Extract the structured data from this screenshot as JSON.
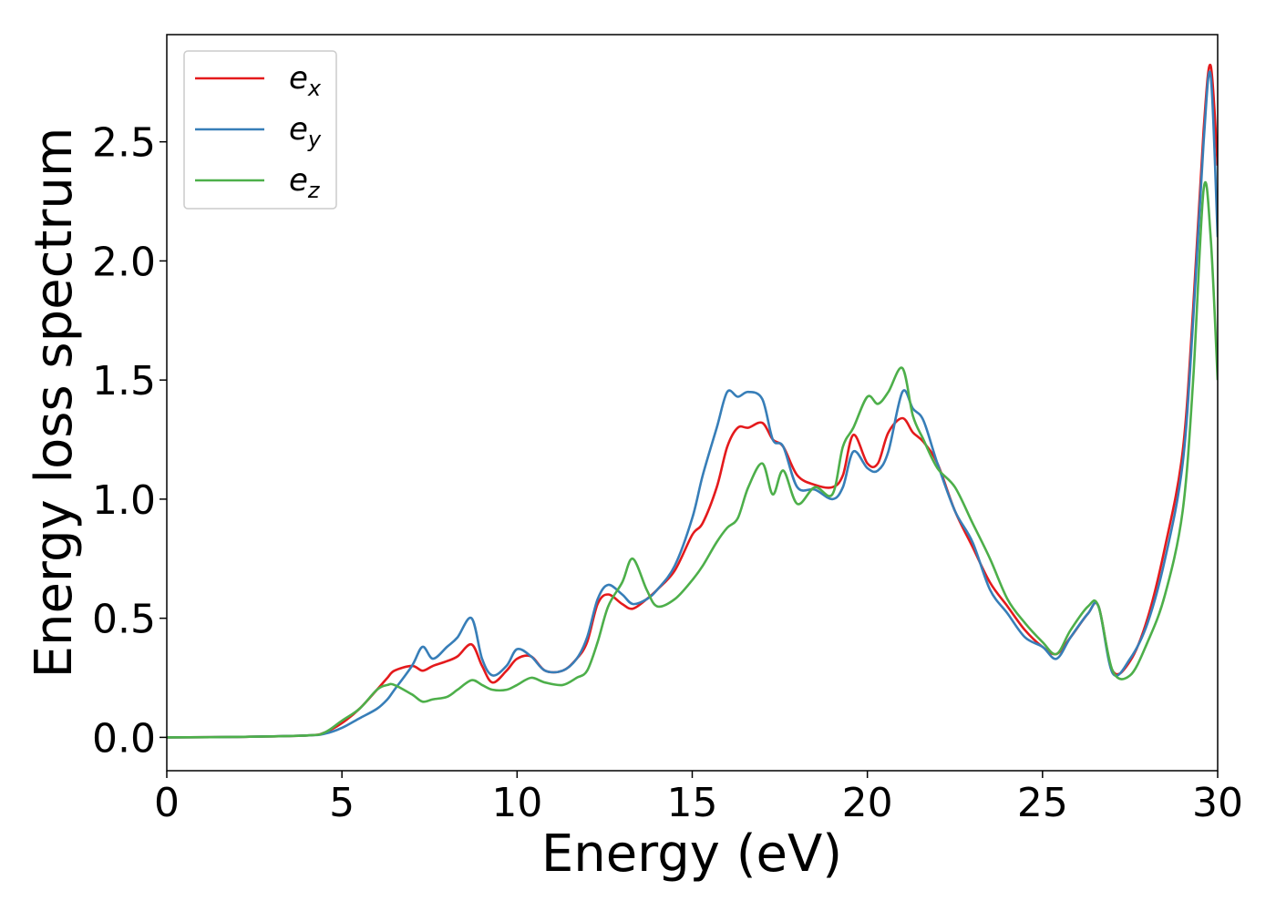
{
  "chart_data": {
    "type": "line",
    "title": "",
    "xlabel": "Energy (eV)",
    "ylabel": "Energy loss spectrum",
    "xlim": [
      0,
      30
    ],
    "ylim": [
      -0.14,
      2.95
    ],
    "xticks": [
      0,
      5,
      10,
      15,
      20,
      25,
      30
    ],
    "xtick_labels": [
      "0",
      "5",
      "10",
      "15",
      "20",
      "25",
      "30"
    ],
    "yticks": [
      0.0,
      0.5,
      1.0,
      1.5,
      2.0,
      2.5
    ],
    "ytick_labels": [
      "0.0",
      "0.5",
      "1.0",
      "1.5",
      "2.0",
      "2.5"
    ],
    "grid": false,
    "legend_position": "top-left",
    "series": [
      {
        "name": "e_x",
        "legend_base": "e",
        "legend_sub": "x",
        "color": "#e41a1c",
        "x": [
          0,
          2,
          4,
          4.5,
          5,
          5.5,
          6,
          6.3,
          6.5,
          7,
          7.3,
          7.6,
          8,
          8.3,
          8.7,
          9,
          9.3,
          9.7,
          10,
          10.4,
          10.8,
          11.3,
          11.7,
          12,
          12.3,
          12.6,
          13,
          13.3,
          13.7,
          14,
          14.5,
          15,
          15.3,
          15.7,
          16,
          16.3,
          16.6,
          17,
          17.3,
          17.6,
          18,
          18.5,
          19,
          19.3,
          19.6,
          20,
          20.3,
          20.6,
          21,
          21.3,
          21.6,
          22,
          22.5,
          23,
          23.5,
          24,
          24.5,
          25,
          25.4,
          25.8,
          26.3,
          26.6,
          27,
          27.5,
          28,
          28.5,
          29,
          29.3,
          29.6,
          29.8,
          30
        ],
        "y": [
          0.0,
          0.002,
          0.008,
          0.02,
          0.06,
          0.12,
          0.2,
          0.25,
          0.28,
          0.3,
          0.28,
          0.3,
          0.32,
          0.34,
          0.39,
          0.3,
          0.23,
          0.28,
          0.33,
          0.34,
          0.28,
          0.28,
          0.33,
          0.4,
          0.56,
          0.6,
          0.56,
          0.54,
          0.58,
          0.62,
          0.7,
          0.85,
          0.9,
          1.05,
          1.22,
          1.3,
          1.3,
          1.32,
          1.25,
          1.22,
          1.1,
          1.06,
          1.05,
          1.1,
          1.27,
          1.15,
          1.15,
          1.28,
          1.34,
          1.28,
          1.24,
          1.15,
          0.95,
          0.8,
          0.65,
          0.55,
          0.45,
          0.38,
          0.35,
          0.42,
          0.52,
          0.55,
          0.28,
          0.32,
          0.5,
          0.8,
          1.2,
          1.8,
          2.55,
          2.82,
          2.4
        ]
      },
      {
        "name": "e_y",
        "legend_base": "e",
        "legend_sub": "y",
        "color": "#377eb8",
        "x": [
          0,
          2,
          4,
          4.5,
          5,
          5.5,
          6,
          6.3,
          6.5,
          7,
          7.3,
          7.6,
          8,
          8.3,
          8.7,
          9,
          9.3,
          9.7,
          10,
          10.4,
          10.8,
          11.3,
          11.7,
          12,
          12.3,
          12.6,
          13,
          13.3,
          13.7,
          14,
          14.5,
          15,
          15.3,
          15.7,
          16,
          16.3,
          16.6,
          17,
          17.3,
          17.6,
          18,
          18.5,
          19,
          19.3,
          19.6,
          20,
          20.3,
          20.6,
          21,
          21.3,
          21.6,
          22,
          22.5,
          23,
          23.5,
          24,
          24.5,
          25,
          25.4,
          25.8,
          26.3,
          26.6,
          27,
          27.5,
          28,
          28.5,
          29,
          29.3,
          29.6,
          29.8,
          30
        ],
        "y": [
          0.0,
          0.002,
          0.008,
          0.015,
          0.04,
          0.08,
          0.12,
          0.16,
          0.2,
          0.3,
          0.38,
          0.33,
          0.38,
          0.42,
          0.5,
          0.33,
          0.26,
          0.3,
          0.37,
          0.34,
          0.28,
          0.28,
          0.33,
          0.42,
          0.58,
          0.64,
          0.6,
          0.56,
          0.58,
          0.62,
          0.72,
          0.92,
          1.1,
          1.3,
          1.45,
          1.43,
          1.45,
          1.42,
          1.25,
          1.22,
          1.05,
          1.04,
          1.0,
          1.05,
          1.2,
          1.13,
          1.12,
          1.2,
          1.45,
          1.38,
          1.33,
          1.15,
          0.95,
          0.82,
          0.62,
          0.52,
          0.42,
          0.38,
          0.33,
          0.42,
          0.52,
          0.55,
          0.27,
          0.33,
          0.48,
          0.75,
          1.15,
          1.75,
          2.5,
          2.78,
          2.1
        ]
      },
      {
        "name": "e_z",
        "legend_base": "e",
        "legend_sub": "z",
        "color": "#4daf4a",
        "x": [
          0,
          2,
          4,
          4.5,
          5,
          5.5,
          6,
          6.3,
          6.5,
          7,
          7.3,
          7.6,
          8,
          8.3,
          8.7,
          9,
          9.3,
          9.7,
          10,
          10.4,
          10.8,
          11.3,
          11.7,
          12,
          12.3,
          12.6,
          13,
          13.3,
          13.7,
          14,
          14.5,
          15,
          15.3,
          15.7,
          16,
          16.3,
          16.6,
          17,
          17.3,
          17.6,
          18,
          18.5,
          19,
          19.3,
          19.6,
          20,
          20.3,
          20.6,
          21,
          21.3,
          21.6,
          22,
          22.5,
          23,
          23.5,
          24,
          24.5,
          25,
          25.4,
          25.8,
          26.3,
          26.6,
          27,
          27.5,
          28,
          28.5,
          29,
          29.3,
          29.6,
          29.8,
          30
        ],
        "y": [
          0.0,
          0.002,
          0.008,
          0.02,
          0.07,
          0.12,
          0.2,
          0.22,
          0.22,
          0.18,
          0.15,
          0.16,
          0.17,
          0.2,
          0.24,
          0.22,
          0.2,
          0.2,
          0.22,
          0.25,
          0.23,
          0.22,
          0.25,
          0.28,
          0.4,
          0.55,
          0.65,
          0.75,
          0.62,
          0.55,
          0.58,
          0.66,
          0.72,
          0.82,
          0.88,
          0.92,
          1.05,
          1.15,
          1.02,
          1.12,
          0.98,
          1.05,
          1.02,
          1.22,
          1.3,
          1.43,
          1.4,
          1.45,
          1.55,
          1.35,
          1.25,
          1.13,
          1.05,
          0.9,
          0.75,
          0.58,
          0.48,
          0.4,
          0.35,
          0.45,
          0.55,
          0.55,
          0.28,
          0.26,
          0.4,
          0.6,
          0.95,
          1.5,
          2.3,
          2.1,
          1.5
        ]
      }
    ]
  }
}
